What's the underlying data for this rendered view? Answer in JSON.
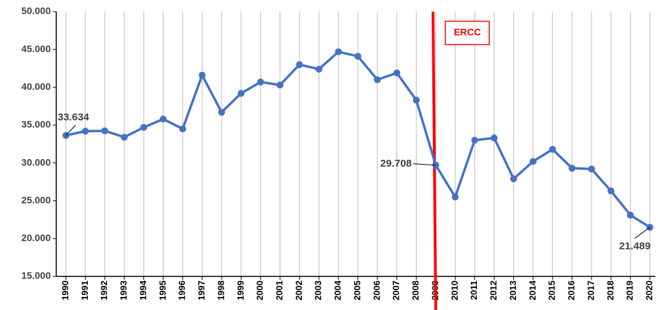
{
  "chart_data": {
    "type": "line",
    "categories": [
      "1990",
      "1991",
      "1992",
      "1993",
      "1994",
      "1995",
      "1996",
      "1997",
      "1998",
      "1999",
      "2000",
      "2001",
      "2002",
      "2003",
      "2004",
      "2005",
      "2006",
      "2007",
      "2008",
      "2009",
      "2010",
      "2011",
      "2012",
      "2013",
      "2014",
      "2015",
      "2016",
      "2017",
      "2018",
      "2019",
      "2020"
    ],
    "values": [
      33634,
      34200,
      34250,
      33400,
      34700,
      35800,
      34500,
      41600,
      36700,
      39200,
      40700,
      40300,
      43000,
      42400,
      44700,
      44100,
      41000,
      41900,
      38300,
      29708,
      25500,
      33000,
      33300,
      27900,
      30200,
      31800,
      29300,
      29200,
      26300,
      23100,
      21489
    ],
    "value_labels": [
      "33.634",
      null,
      null,
      null,
      null,
      null,
      null,
      null,
      null,
      null,
      null,
      null,
      null,
      null,
      null,
      null,
      null,
      null,
      null,
      "29.708",
      null,
      null,
      null,
      null,
      null,
      null,
      null,
      null,
      null,
      null,
      "21.489"
    ],
    "color": "#4472c4",
    "ylim": [
      15000,
      50000
    ],
    "yticks": [
      {
        "value": 15000,
        "label": "15.000"
      },
      {
        "value": 20000,
        "label": "20.000"
      },
      {
        "value": 25000,
        "label": "25.000"
      },
      {
        "value": 30000,
        "label": "30.000"
      },
      {
        "value": 35000,
        "label": "35.000"
      },
      {
        "value": 40000,
        "label": "40.000"
      },
      {
        "value": 45000,
        "label": "45.000"
      },
      {
        "value": 50000,
        "label": "50.000"
      }
    ],
    "grid": true,
    "annotations": [
      {
        "text": "ERCC",
        "category": "2009",
        "color": "#ff0000"
      }
    ]
  }
}
